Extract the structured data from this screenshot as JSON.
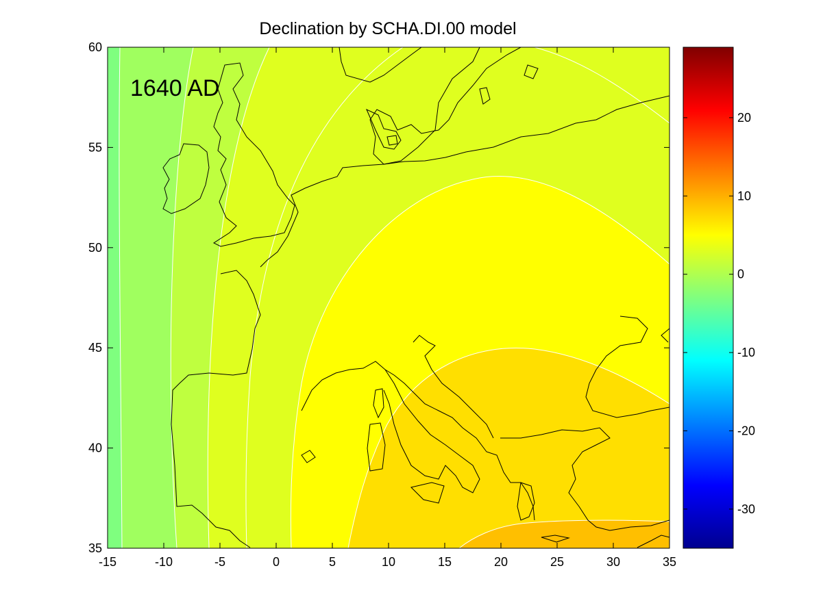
{
  "chart_data": {
    "type": "heatmap",
    "title": "Declination by SCHA.DI.00 model",
    "annotation": "1640 AD",
    "xlabel": "",
    "ylabel": "",
    "xlim": [
      -15,
      35
    ],
    "ylim": [
      35,
      60
    ],
    "xticks": [
      -15,
      -10,
      -5,
      0,
      5,
      10,
      15,
      20,
      25,
      30,
      35
    ],
    "yticks": [
      35,
      40,
      45,
      50,
      55,
      60
    ],
    "colorbar": {
      "range": [
        -35,
        29
      ],
      "ticks": [
        -30,
        -20,
        -10,
        0,
        10,
        20
      ],
      "colormap": "jet",
      "position": "right"
    },
    "contour_levels": [
      -10,
      -7.5,
      -5,
      -2.5,
      0,
      2.5,
      5,
      7.5,
      10
    ],
    "contour_line_color": "#ffffff",
    "coastline_color": "#000000",
    "grid": false,
    "region": "Europe (longitude -15 to 35, latitude 35 to 60)"
  }
}
